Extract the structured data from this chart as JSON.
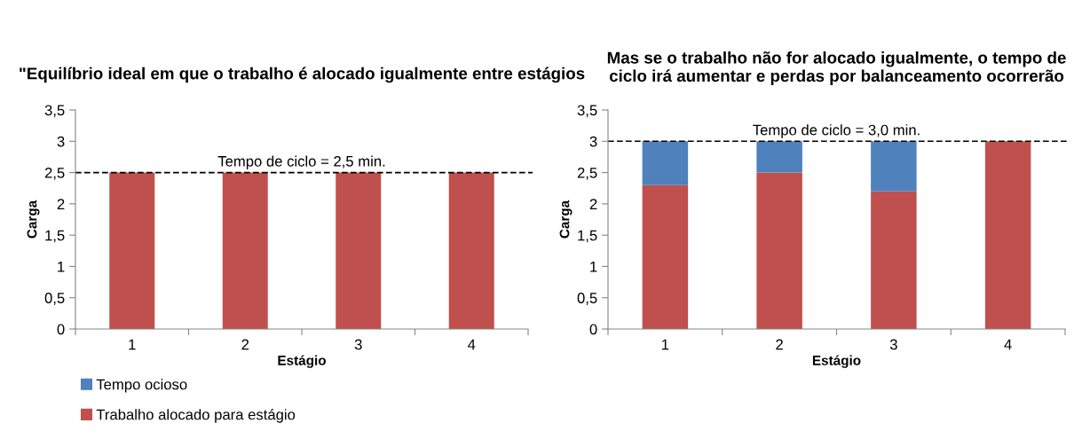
{
  "chart_data": [
    {
      "type": "bar",
      "title": "\"Equilíbrio ideal em que o trabalho é alocado igualmente entre estágios",
      "xlabel": "Estágio",
      "ylabel": "Carga",
      "categories": [
        "1",
        "2",
        "3",
        "4"
      ],
      "stacked": true,
      "series": [
        {
          "name": "Trabalho alocado para estágio",
          "color": "#c0504d",
          "values": [
            2.5,
            2.5,
            2.5,
            2.5
          ]
        },
        {
          "name": "Tempo ocioso",
          "color": "#4f81bd",
          "values": [
            0,
            0,
            0,
            0
          ]
        }
      ],
      "ylim": [
        0,
        3.5
      ],
      "yticks": [
        0,
        {
          "value": 0.5,
          "label": "0,5"
        },
        1,
        {
          "value": 1.5,
          "label": "1,5"
        },
        2,
        {
          "value": 2.5,
          "label": "2,5"
        },
        3,
        {
          "value": 3.5,
          "label": "3,5"
        }
      ],
      "ref_lines": [
        {
          "axis": "y",
          "value": 2.5,
          "label": "Tempo de ciclo = 2,5 min.",
          "color": "#000000",
          "line_style": "dashed"
        }
      ],
      "legend": "bottom left",
      "grid": false
    },
    {
      "type": "bar",
      "title": "Mas se o trabalho não for alocado igualmente, o tempo de ciclo irá aumentar e perdas por balanceamento ocorrerão",
      "xlabel": "Estágio",
      "ylabel": "Carga",
      "categories": [
        "1",
        "2",
        "3",
        "4"
      ],
      "stacked": true,
      "series": [
        {
          "color": "#c0504d",
          "values": [
            2.3,
            2.5,
            2.2,
            3.0
          ]
        },
        {
          "color": "#4f81bd",
          "values": [
            0.7,
            0.5,
            0.8,
            0
          ]
        }
      ],
      "ylim": [
        0,
        3.5
      ],
      "yticks": [
        0,
        {
          "value": 0.5,
          "label": "0,5"
        },
        1,
        {
          "value": 1.5,
          "label": "1,5"
        },
        2,
        {
          "value": 2.5,
          "label": "2,5"
        },
        3,
        {
          "value": 3.5,
          "label": "3,5"
        }
      ],
      "ref_lines": [
        {
          "axis": "y",
          "value": 3.0,
          "label": "Tempo de ciclo = 3,0 min.",
          "color": "#000000",
          "line_style": "dashed"
        }
      ],
      "legend": false,
      "grid": false
    }
  ]
}
